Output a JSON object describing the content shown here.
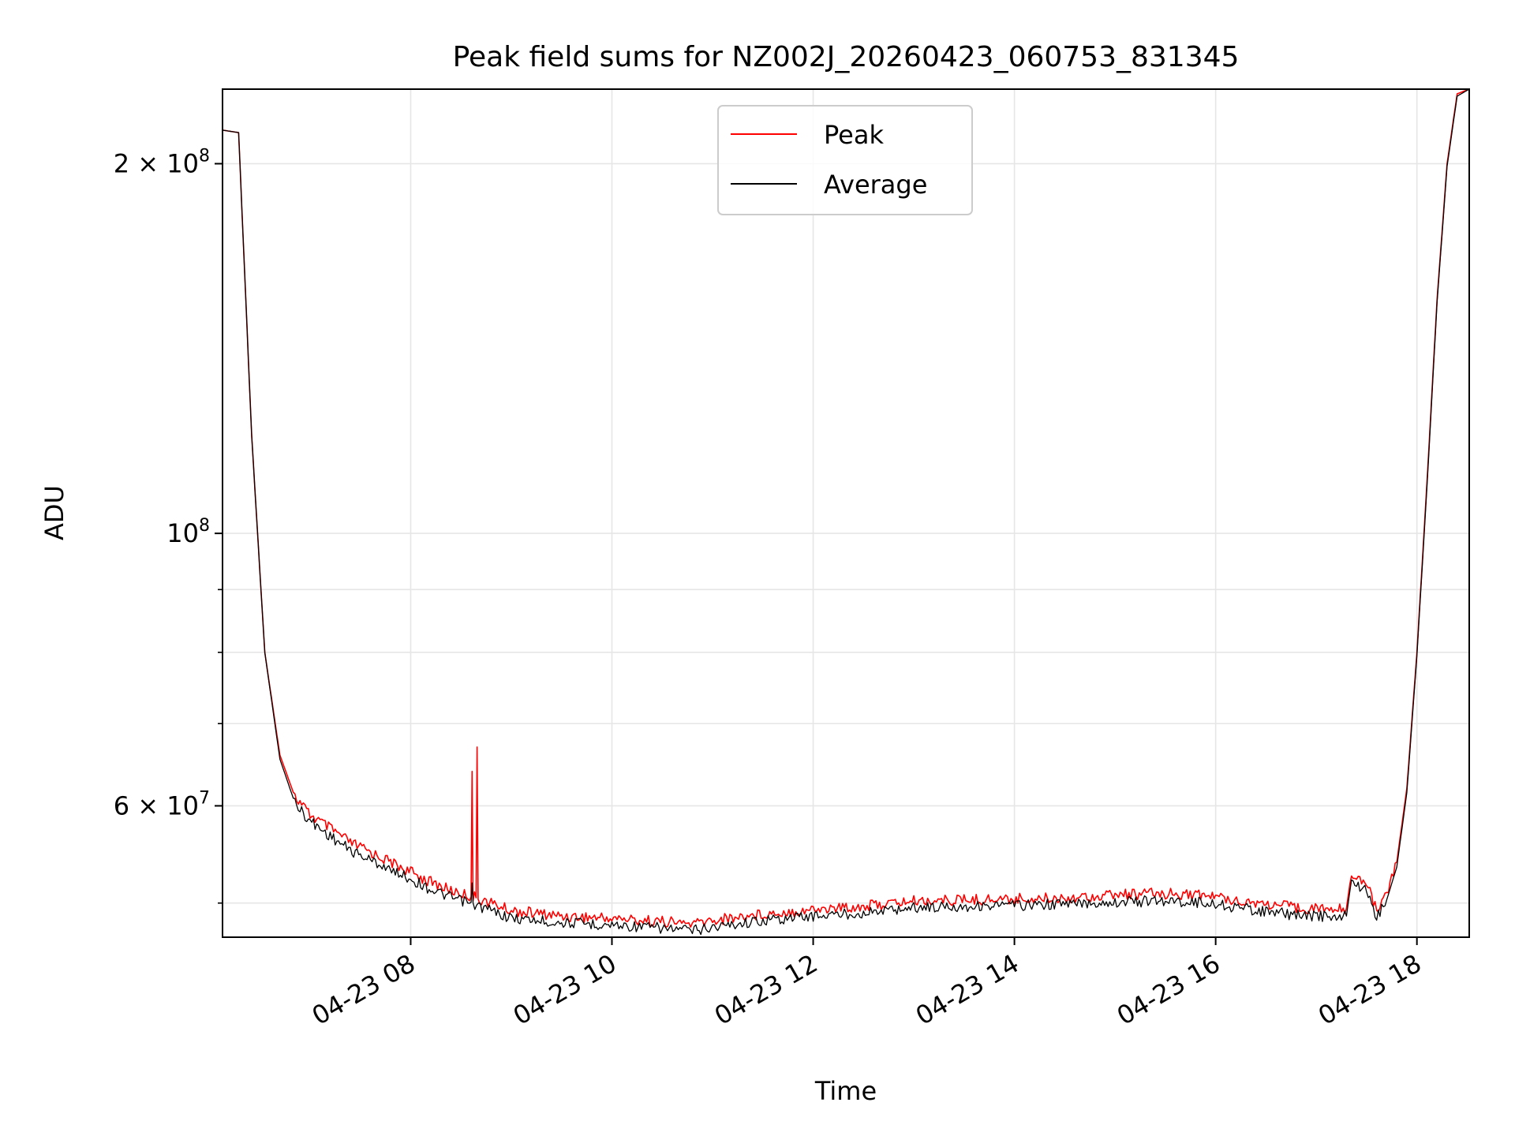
{
  "chart_data": {
    "type": "line",
    "title": "Peak field sums for NZ002J_20260423_060753_831345",
    "xlabel": "Time",
    "ylabel": "ADU",
    "yscale": "log",
    "grid": true,
    "legend_position": "top-center",
    "x_unit": "hours since 2026-04-23 00:00",
    "xlim": [
      6.13,
      18.52
    ],
    "ylim": [
      46900000,
      230000000
    ],
    "x_ticks": [
      {
        "value": 8,
        "label": "04-23 08"
      },
      {
        "value": 10,
        "label": "04-23 10"
      },
      {
        "value": 12,
        "label": "04-23 12"
      },
      {
        "value": 14,
        "label": "04-23 14"
      },
      {
        "value": 16,
        "label": "04-23 16"
      },
      {
        "value": 18,
        "label": "04-23 18"
      }
    ],
    "y_major_ticks": [
      {
        "value": 60000000,
        "label": "6 × 10",
        "exp": "7"
      },
      {
        "value": 100000000,
        "label": "10",
        "exp": "8"
      },
      {
        "value": 200000000,
        "label": "2 × 10",
        "exp": "8"
      }
    ],
    "y_minor_ticks": [
      50000000,
      70000000,
      80000000,
      90000000
    ],
    "series": [
      {
        "name": "Peak",
        "color": "#ff0000",
        "x": [
          6.13,
          6.29,
          6.42,
          6.55,
          6.7,
          6.85,
          7.0,
          7.2,
          7.4,
          7.6,
          7.8,
          8.0,
          8.2,
          8.4,
          8.55,
          8.6,
          8.61,
          8.62,
          8.65,
          8.66,
          8.67,
          8.8,
          9.0,
          9.5,
          10.0,
          10.5,
          10.8,
          11.0,
          11.5,
          12.0,
          12.5,
          12.8,
          13.0,
          13.5,
          14.0,
          14.5,
          15.0,
          15.5,
          15.8,
          16.0,
          16.5,
          16.8,
          17.2,
          17.3,
          17.35,
          17.45,
          17.5,
          17.6,
          17.7,
          17.8,
          17.9,
          18.0,
          18.1,
          18.2,
          18.3,
          18.4,
          18.52
        ],
        "y": [
          213000000,
          212000000,
          120000000,
          80000000,
          66000000,
          61000000,
          59000000,
          57500000,
          56000000,
          55000000,
          54000000,
          53000000,
          52000000,
          51200000,
          50800000,
          50600000,
          64000000,
          50600000,
          50500000,
          67000000,
          50400000,
          50000000,
          49300000,
          48800000,
          48600000,
          48300000,
          48100000,
          48400000,
          49000000,
          49400000,
          49700000,
          50000000,
          50200000,
          50300000,
          50400000,
          50500000,
          50800000,
          50900000,
          50800000,
          50600000,
          49900000,
          49600000,
          49400000,
          49500000,
          53000000,
          52000000,
          52000000,
          49300000,
          51000000,
          54000000,
          62000000,
          80000000,
          110000000,
          155000000,
          200000000,
          228000000,
          230000000
        ]
      },
      {
        "name": "Average",
        "color": "#000000",
        "x": [
          6.13,
          6.29,
          6.42,
          6.55,
          6.7,
          6.85,
          7.0,
          7.2,
          7.4,
          7.6,
          7.8,
          7.81,
          7.83,
          8.0,
          8.2,
          8.4,
          8.55,
          8.6,
          8.61,
          8.62,
          8.8,
          9.0,
          9.5,
          10.0,
          10.5,
          10.8,
          11.0,
          11.5,
          12.0,
          12.5,
          12.8,
          13.0,
          13.5,
          14.0,
          14.5,
          15.0,
          15.5,
          15.8,
          16.0,
          16.5,
          16.8,
          17.2,
          17.3,
          17.35,
          17.45,
          17.5,
          17.6,
          17.7,
          17.8,
          17.9,
          18.0,
          18.1,
          18.2,
          18.3,
          18.4,
          18.52
        ],
        "y": [
          213000000,
          212000000,
          120000000,
          80000000,
          65500000,
          60300000,
          58300000,
          56700000,
          55200000,
          54200000,
          53300000,
          52400000,
          53200000,
          52300000,
          51300000,
          50500000,
          50100000,
          49900000,
          51500000,
          49900000,
          49300000,
          48600000,
          48200000,
          48000000,
          47700000,
          47500000,
          47800000,
          48400000,
          48800000,
          49100000,
          49400000,
          49600000,
          49700000,
          49800000,
          49900000,
          50100000,
          50200000,
          50100000,
          49900000,
          49200000,
          48900000,
          48700000,
          48800000,
          52300000,
          51300000,
          51300000,
          48700000,
          50300000,
          53500000,
          61500000,
          79500000,
          109000000,
          154000000,
          199000000,
          227000000,
          230000000
        ]
      }
    ]
  }
}
